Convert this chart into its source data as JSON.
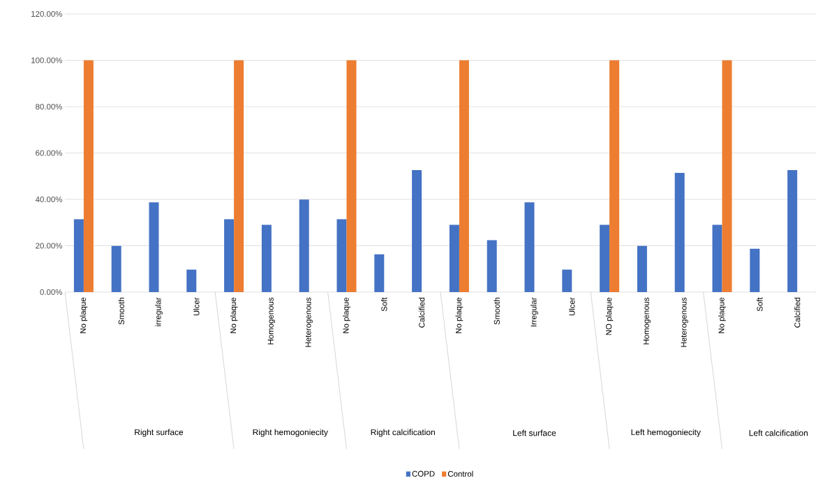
{
  "chart_data": {
    "type": "bar",
    "categories": [
      "No plaque",
      "Smooth",
      "irregular",
      "Ulcer",
      "No plaque",
      "Homogenous",
      "Heterogenous",
      "No plaque",
      "Soft",
      "Calcified",
      "No plaque",
      "Smooth",
      "Irregular",
      "Ulcer",
      "NO plaque",
      "Homogenous",
      "Heterogenous",
      "No plaque",
      "Soft",
      "Calcified"
    ],
    "series": [
      {
        "name": "COPD",
        "color": "#4472c4",
        "values": [
          31.4,
          19.9,
          38.7,
          9.7,
          31.4,
          29,
          39.9,
          31.4,
          16.3,
          52.6,
          29,
          22.4,
          38.7,
          9.7,
          29,
          19.9,
          51.4,
          29,
          18.7,
          52.6
        ]
      },
      {
        "name": "Control",
        "color": "#ed7d31",
        "values": [
          100,
          0,
          0,
          0,
          100,
          0,
          0,
          100,
          0,
          0,
          100,
          0,
          0,
          0,
          100,
          0,
          0,
          100,
          0,
          0
        ]
      }
    ],
    "ylim": [
      0,
      120
    ],
    "yticks": [
      {
        "value": 0,
        "label": "0.00%"
      },
      {
        "value": 20,
        "label": "20.00%"
      },
      {
        "value": 40,
        "label": "40.00%"
      },
      {
        "value": 60,
        "label": "60.00%"
      },
      {
        "value": 80,
        "label": "80.00%"
      },
      {
        "value": 100,
        "label": "100.00%"
      },
      {
        "value": 120,
        "label": "120.00%"
      }
    ],
    "annotations": [
      "Right surface",
      "Right hemogoniecity",
      "Right calcification",
      "Left surface",
      "Left hemogoniecity",
      "Left  calcification"
    ],
    "grid": "y",
    "legend": "bottom"
  }
}
